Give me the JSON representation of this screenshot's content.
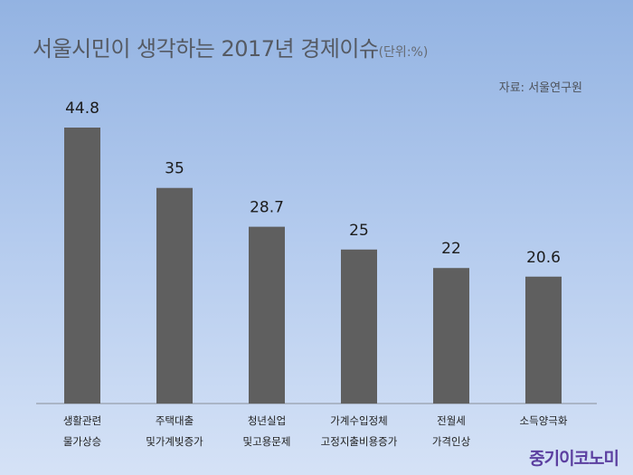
{
  "header": {
    "title": "서울시민이 생각하는 2017년 경제이슈",
    "unit": "(단위:%)",
    "source": "자료: 서울연구원",
    "brand": "중기이코노미"
  },
  "colors": {
    "bar": "#5f5f5f",
    "background_top": "#93b3e2",
    "background_bottom": "#d5e2f6",
    "brand": "#5b3fa0"
  },
  "chart_data": {
    "type": "bar",
    "title": "서울시민이 생각하는 2017년 경제이슈",
    "categories": [
      [
        "생활관련",
        "물가상승"
      ],
      [
        "주택대출",
        "및가계빚증가"
      ],
      [
        "청년실업",
        "및고용문제"
      ],
      [
        "가계수입정체",
        "고정지출비용증가"
      ],
      [
        "전월세",
        "가격인상"
      ],
      [
        "소득양극화"
      ]
    ],
    "values": [
      44.8,
      35,
      28.7,
      25,
      22,
      20.6
    ],
    "value_labels": [
      "44.8",
      "35",
      "28.7",
      "25",
      "22",
      "20.6"
    ],
    "ylim": [
      0,
      50
    ],
    "grid": false,
    "legend": "none"
  }
}
